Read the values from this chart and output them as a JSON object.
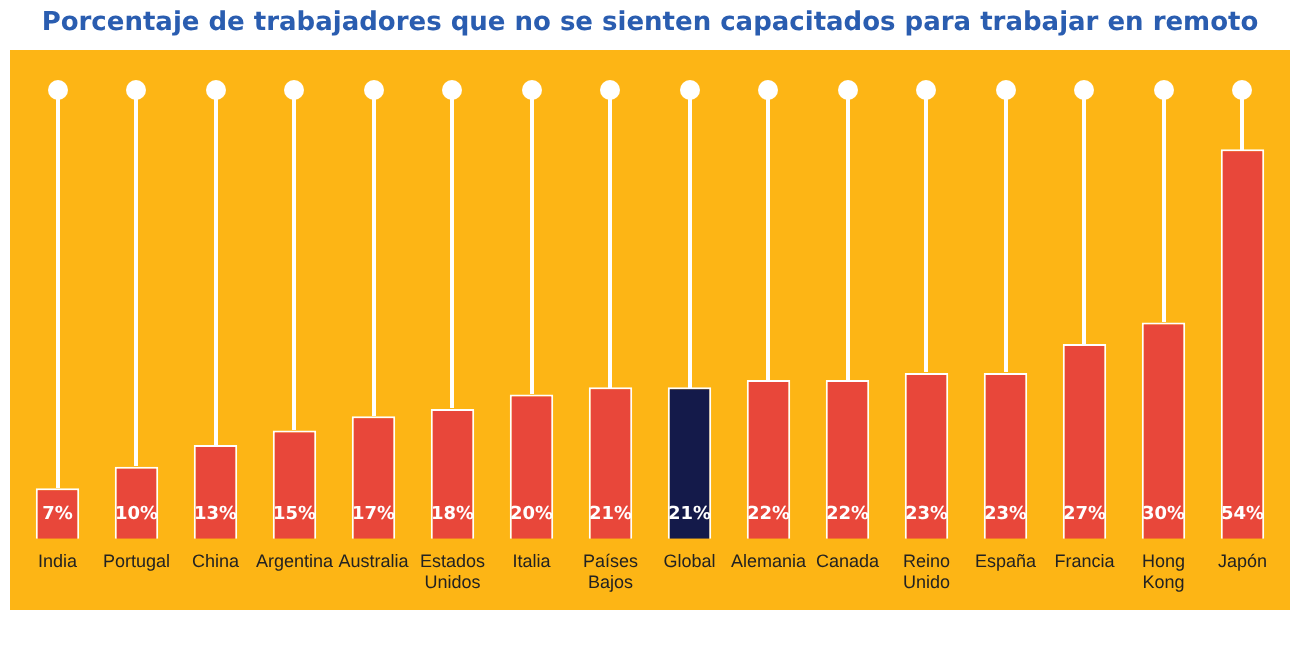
{
  "chart_data": {
    "type": "bar",
    "title": "Porcentaje de trabajadores que no se sienten capacitados para trabajar en remoto",
    "categories": [
      "India",
      "Portugal",
      "China",
      "Argentina",
      "Australia",
      "Estados Unidos",
      "Italia",
      "Países Bajos",
      "Global",
      "Alemania",
      "Canada",
      "Reino Unido",
      "España",
      "Francia",
      "Hong Kong",
      "Japón"
    ],
    "values": [
      7,
      10,
      13,
      15,
      17,
      18,
      20,
      21,
      21,
      22,
      22,
      23,
      23,
      27,
      30,
      54
    ],
    "value_labels": [
      "7%",
      "10%",
      "13%",
      "15%",
      "17%",
      "18%",
      "20%",
      "21%",
      "21%",
      "22%",
      "22%",
      "23%",
      "23%",
      "27%",
      "30%",
      "54%"
    ],
    "colors": [
      "#e8473a",
      "#e8473a",
      "#e8473a",
      "#e8473a",
      "#e8473a",
      "#e8473a",
      "#e8473a",
      "#e8473a",
      "#141a4a",
      "#e8473a",
      "#e8473a",
      "#e8473a",
      "#e8473a",
      "#e8473a",
      "#e8473a",
      "#e8473a"
    ],
    "grid": false,
    "legend": false
  }
}
